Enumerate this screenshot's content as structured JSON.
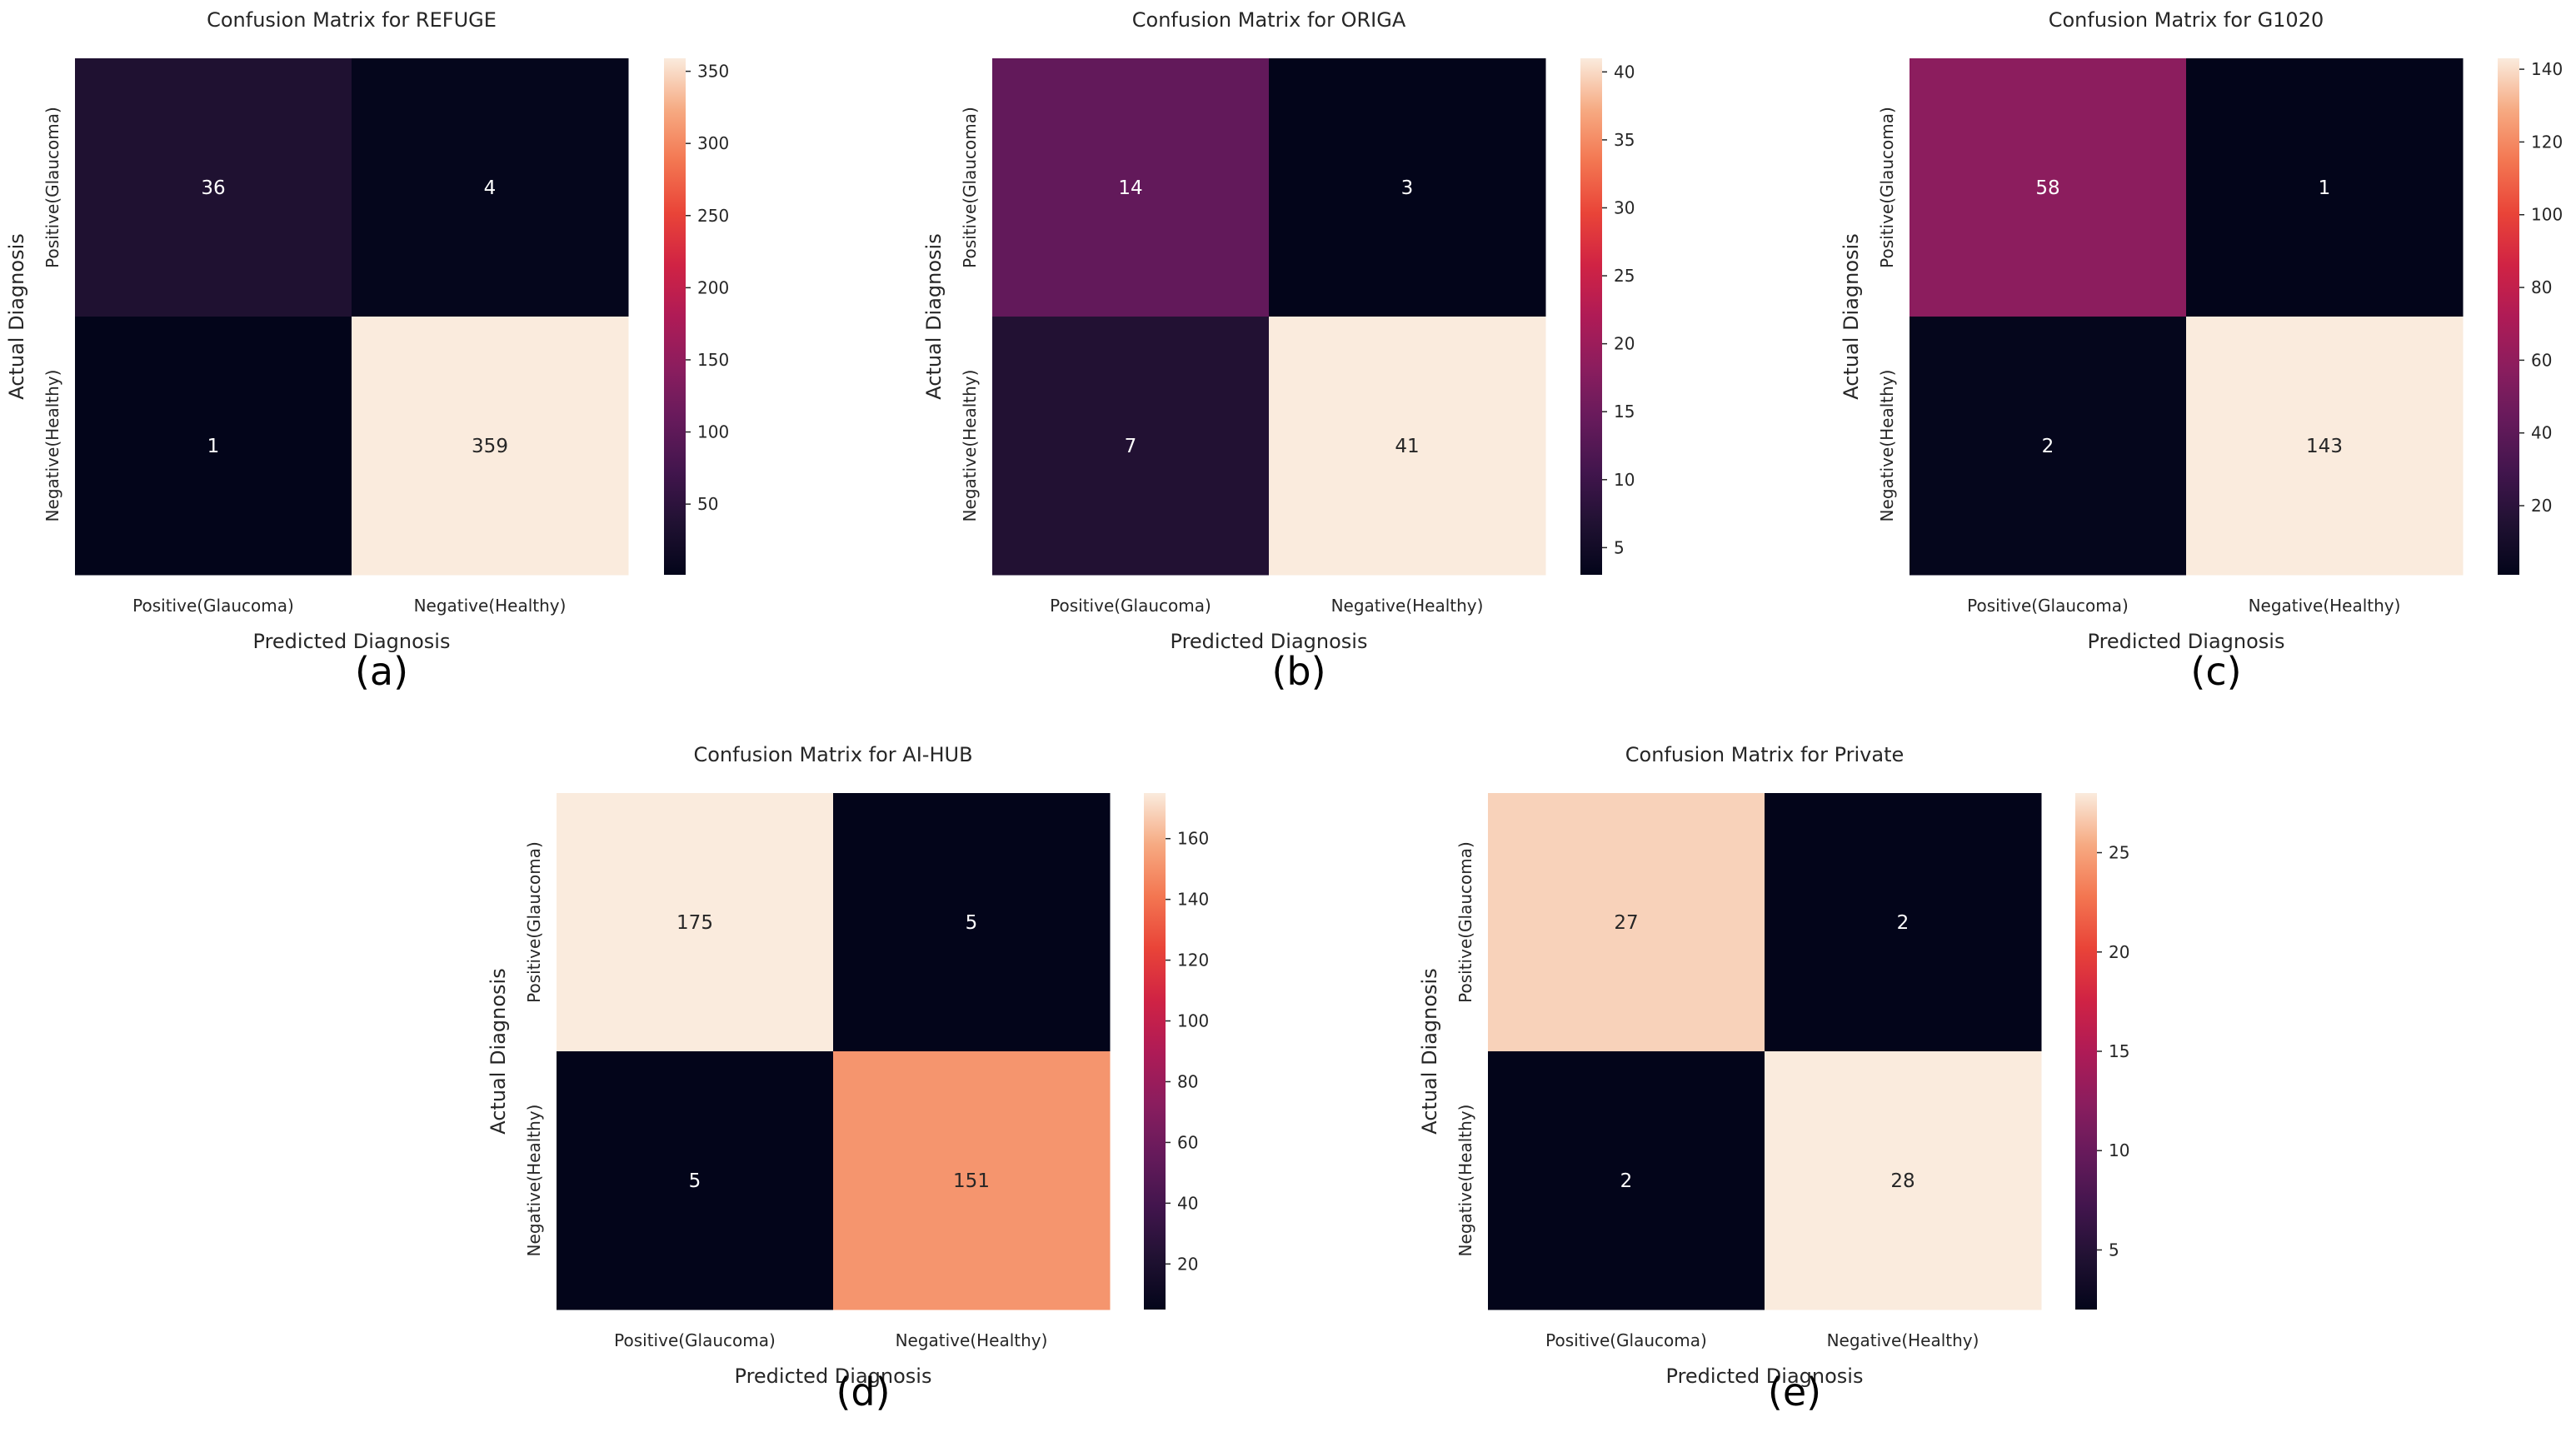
{
  "chart_data": [
    {
      "type": "heatmap",
      "panel_label": "(a)",
      "title": "Confusion Matrix for REFUGE",
      "xlabel": "Predicted Diagnosis",
      "ylabel": "Actual Diagnosis",
      "x_categories": [
        "Positive(Glaucoma)",
        "Negative(Healthy)"
      ],
      "y_categories": [
        "Positive(Glaucoma)",
        "Negative(Healthy)"
      ],
      "values": [
        [
          36,
          4
        ],
        [
          1,
          359
        ]
      ],
      "colorbar": {
        "range": [
          1,
          359
        ],
        "ticks": [
          50,
          100,
          150,
          200,
          250,
          300,
          350
        ]
      },
      "colormap": "rocket"
    },
    {
      "type": "heatmap",
      "panel_label": "(b)",
      "title": "Confusion Matrix for ORIGA",
      "xlabel": "Predicted Diagnosis",
      "ylabel": "Actual Diagnosis",
      "x_categories": [
        "Positive(Glaucoma)",
        "Negative(Healthy)"
      ],
      "y_categories": [
        "Positive(Glaucoma)",
        "Negative(Healthy)"
      ],
      "values": [
        [
          14,
          3
        ],
        [
          7,
          41
        ]
      ],
      "colorbar": {
        "range": [
          3,
          41
        ],
        "ticks": [
          5,
          10,
          15,
          20,
          25,
          30,
          35,
          40
        ]
      },
      "colormap": "rocket"
    },
    {
      "type": "heatmap",
      "panel_label": "(c)",
      "title": "Confusion Matrix for G1020",
      "xlabel": "Predicted Diagnosis",
      "ylabel": "Actual Diagnosis",
      "x_categories": [
        "Positive(Glaucoma)",
        "Negative(Healthy)"
      ],
      "y_categories": [
        "Positive(Glaucoma)",
        "Negative(Healthy)"
      ],
      "values": [
        [
          58,
          1
        ],
        [
          2,
          143
        ]
      ],
      "colorbar": {
        "range": [
          1,
          143
        ],
        "ticks": [
          20,
          40,
          60,
          80,
          100,
          120,
          140
        ]
      },
      "colormap": "rocket"
    },
    {
      "type": "heatmap",
      "panel_label": "(d)",
      "title": "Confusion Matrix for AI-HUB",
      "xlabel": "Predicted Diagnosis",
      "ylabel": "Actual Diagnosis",
      "x_categories": [
        "Positive(Glaucoma)",
        "Negative(Healthy)"
      ],
      "y_categories": [
        "Positive(Glaucoma)",
        "Negative(Healthy)"
      ],
      "values": [
        [
          175,
          5
        ],
        [
          5,
          151
        ]
      ],
      "colorbar": {
        "range": [
          5,
          175
        ],
        "ticks": [
          20,
          40,
          60,
          80,
          100,
          120,
          140,
          160
        ]
      },
      "colormap": "rocket"
    },
    {
      "type": "heatmap",
      "panel_label": "(e)",
      "title": "Confusion Matrix for Private",
      "xlabel": "Predicted Diagnosis",
      "ylabel": "Actual Diagnosis",
      "x_categories": [
        "Positive(Glaucoma)",
        "Negative(Healthy)"
      ],
      "y_categories": [
        "Positive(Glaucoma)",
        "Negative(Healthy)"
      ],
      "values": [
        [
          27,
          2
        ],
        [
          2,
          28
        ]
      ],
      "colorbar": {
        "range": [
          2,
          28
        ],
        "ticks": [
          5,
          10,
          15,
          20,
          25
        ]
      },
      "colormap": "rocket"
    }
  ]
}
